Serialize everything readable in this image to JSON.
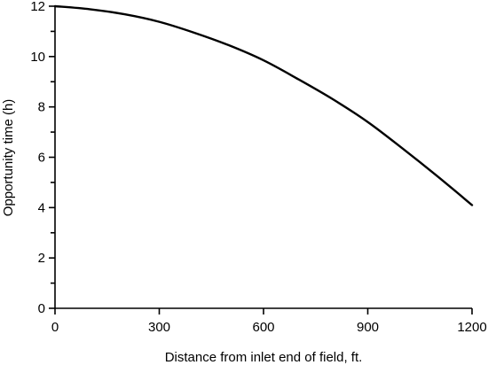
{
  "chart_data": {
    "type": "line",
    "title": "",
    "xlabel": "Distance from inlet end of field, ft.",
    "ylabel": "Opportunity time (h)",
    "xlim": [
      0,
      1200
    ],
    "ylim": [
      0,
      12
    ],
    "x_ticks": [
      0,
      300,
      600,
      900,
      1200
    ],
    "y_ticks": [
      0,
      2,
      4,
      6,
      8,
      10,
      12
    ],
    "y_minor_ticks": [
      1,
      3,
      5,
      7,
      9,
      11
    ],
    "grid": false,
    "legend": "none",
    "series": [
      {
        "color": "#000000",
        "x": [
          0,
          100,
          200,
          300,
          400,
          500,
          600,
          700,
          800,
          900,
          1000,
          1100,
          1200
        ],
        "y": [
          12.0,
          11.88,
          11.68,
          11.38,
          10.95,
          10.45,
          9.85,
          9.1,
          8.3,
          7.4,
          6.35,
          5.25,
          4.1
        ]
      }
    ]
  }
}
